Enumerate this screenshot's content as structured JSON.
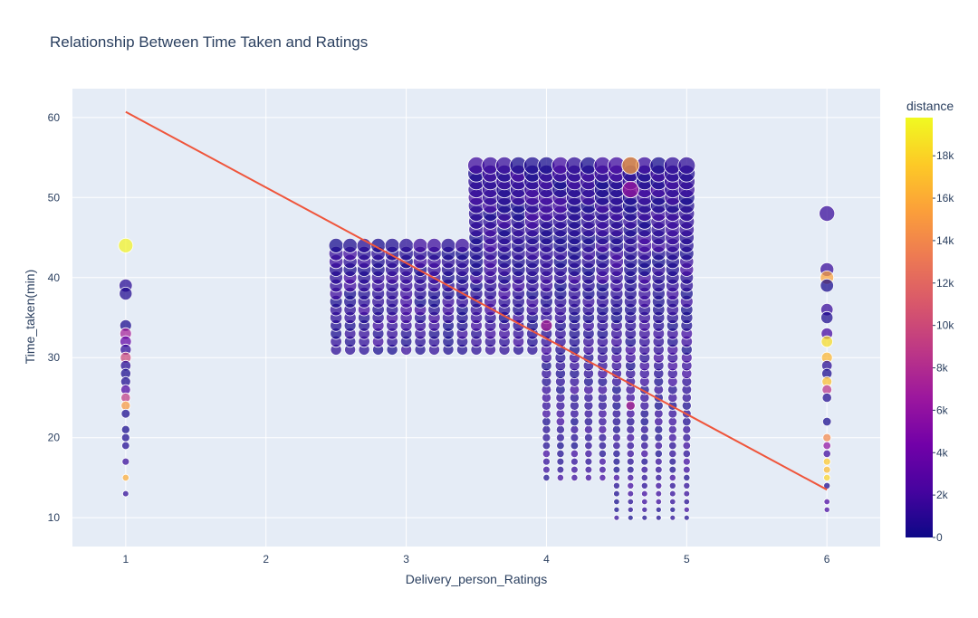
{
  "chart_data": {
    "type": "scatter",
    "title": "Relationship Between Time Taken and Ratings",
    "xlabel": "Delivery_person_Ratings",
    "ylabel": "Time_taken(min)",
    "xlim": [
      0.62,
      6.38
    ],
    "ylim": [
      6.4,
      63.6
    ],
    "x_ticks": [
      "1",
      "2",
      "3",
      "4",
      "5",
      "6"
    ],
    "y_ticks": [
      "10",
      "20",
      "30",
      "40",
      "50",
      "60"
    ],
    "grid": true,
    "colorbar": {
      "title": "distance",
      "range": [
        0,
        19800
      ],
      "ticks": [
        "0",
        "2k",
        "4k",
        "6k",
        "8k",
        "10k",
        "12k",
        "14k",
        "16k",
        "18k"
      ],
      "colorscale": [
        "#0d0887",
        "#46039f",
        "#7201a8",
        "#9c179e",
        "#bd3786",
        "#d8576b",
        "#ed7953",
        "#fb9f3a",
        "#fdca26",
        "#f0f921"
      ]
    },
    "trendline": {
      "color": "#ef553b",
      "points": [
        [
          1,
          60.7
        ],
        [
          6,
          13.5
        ]
      ]
    },
    "series": [
      {
        "points": [
          [
            1,
            44,
            19500
          ],
          [
            1,
            39,
            900
          ],
          [
            1,
            38,
            600
          ],
          [
            1,
            34,
            300
          ],
          [
            1,
            33,
            7200
          ],
          [
            1,
            32,
            3500
          ],
          [
            1,
            31,
            1200
          ],
          [
            1,
            30,
            9800
          ],
          [
            1,
            29,
            800
          ],
          [
            1,
            28,
            400
          ],
          [
            1,
            27,
            500
          ],
          [
            1,
            26,
            2500
          ],
          [
            1,
            25,
            9000
          ],
          [
            1,
            24,
            15000
          ],
          [
            1,
            23,
            400
          ],
          [
            1,
            21,
            300
          ],
          [
            1,
            20,
            500
          ],
          [
            1,
            19,
            700
          ],
          [
            1,
            17,
            1500
          ],
          [
            1,
            15,
            16000
          ],
          [
            1,
            13,
            1200
          ],
          [
            6,
            48,
            1500
          ],
          [
            6,
            41,
            1500
          ],
          [
            6,
            40,
            15500
          ],
          [
            6,
            39,
            300
          ],
          [
            6,
            36,
            1500
          ],
          [
            6,
            35,
            500
          ],
          [
            6,
            33,
            2000
          ],
          [
            6,
            32,
            18500
          ],
          [
            6,
            30,
            16500
          ],
          [
            6,
            29,
            900
          ],
          [
            6,
            28,
            400
          ],
          [
            6,
            27,
            17000
          ],
          [
            6,
            26,
            8500
          ],
          [
            6,
            25,
            600
          ],
          [
            6,
            22,
            300
          ],
          [
            6,
            20,
            14000
          ],
          [
            6,
            19,
            6000
          ],
          [
            6,
            18,
            1800
          ],
          [
            6,
            17,
            17500
          ],
          [
            6,
            16,
            16800
          ],
          [
            6,
            15,
            18000
          ],
          [
            6,
            14,
            500
          ],
          [
            6,
            12,
            2200
          ],
          [
            6,
            11,
            2000
          ],
          [
            4.0,
            34,
            7500
          ],
          [
            4.6,
            54,
            15500
          ],
          [
            4.6,
            51,
            6500
          ],
          [
            4.6,
            24,
            7800
          ]
        ],
        "dense_groups": [
          {
            "x": [
              2.5,
              2.6,
              2.7,
              2.8,
              2.9,
              3.0
            ],
            "y_min": 31,
            "y_max": 44
          },
          {
            "x": [
              3.1,
              3.2,
              3.3,
              3.4
            ],
            "y_min": 31,
            "y_max": 44
          },
          {
            "x": [
              3.5,
              3.6,
              3.7,
              3.8,
              3.9
            ],
            "y_min": 31,
            "y_max": 54
          },
          {
            "x": [
              4.0,
              4.1,
              4.2,
              4.3,
              4.4
            ],
            "y_min": 15,
            "y_max": 54
          },
          {
            "x": [
              4.5,
              4.6,
              4.7,
              4.8,
              4.9,
              5.0
            ],
            "y_min": 10,
            "y_max": 54
          }
        ]
      }
    ]
  }
}
